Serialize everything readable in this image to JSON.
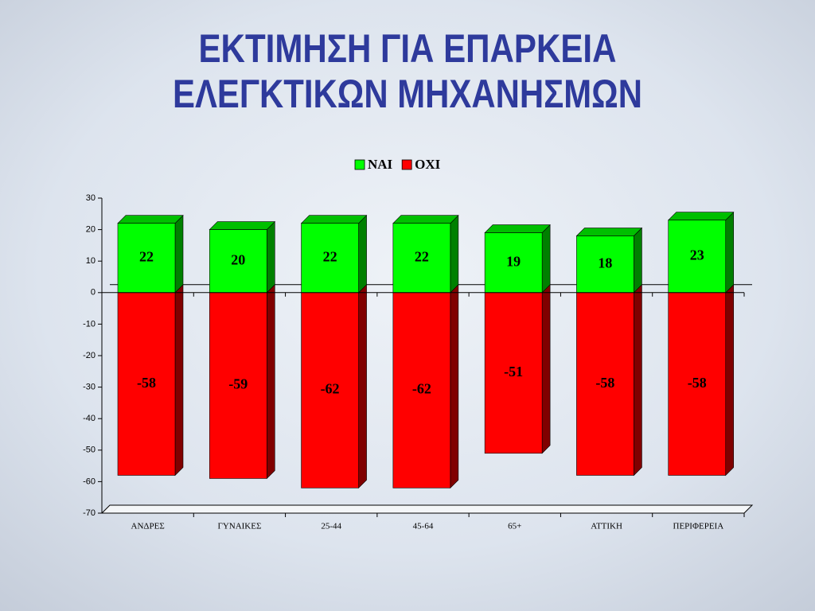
{
  "chart_data": {
    "type": "bar",
    "title": [
      "ΕΚΤΙΜΗΣΗ ΓΙΑ ΕΠΑΡΚΕΙΑ",
      "ΕΛΕΓΚΤΙΚΩΝ ΜΗΧΑΝΗΣΜΩΝ"
    ],
    "categories": [
      "ΑΝΔΡΕΣ",
      "ΓΥΝΑΙΚΕΣ",
      "25-44",
      "45-64",
      "65+",
      "ΑΤΤΙΚΗ",
      "ΠΕΡΙΦΕΡΕΙΑ"
    ],
    "series": [
      {
        "name": "ΝΑΙ",
        "color": "#00ff00",
        "values": [
          22,
          20,
          22,
          22,
          19,
          18,
          23
        ]
      },
      {
        "name": "ΟΧΙ",
        "color": "#ff0000",
        "values": [
          -58,
          -59,
          -62,
          -62,
          -51,
          -58,
          -58
        ]
      }
    ],
    "ylim": [
      -70,
      30
    ],
    "yticks": [
      -70,
      -60,
      -50,
      -40,
      -30,
      -20,
      -10,
      0,
      10,
      20,
      30
    ],
    "legend": "top"
  }
}
